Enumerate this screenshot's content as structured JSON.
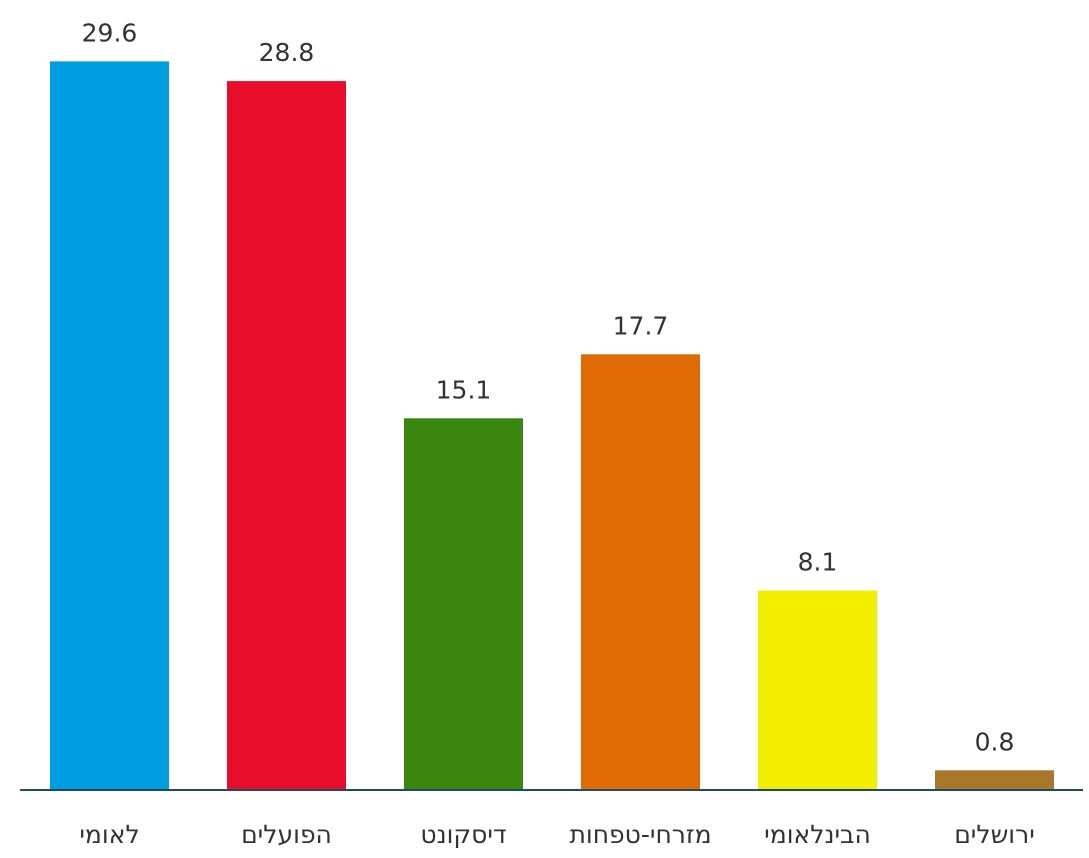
{
  "chart_data": {
    "type": "bar",
    "categories": [
      "לאומי",
      "הפועלים",
      "דיסקונט",
      "מזרחי-טפחות",
      "הבינלאומי",
      "ירושלים"
    ],
    "values": [
      29.6,
      28.8,
      15.1,
      17.7,
      8.1,
      0.8
    ],
    "colors": [
      "#009ee0",
      "#e80e2b",
      "#3a870f",
      "#e06a03",
      "#f3ee00",
      "#a8782a"
    ],
    "axis_color": "#1d4b63",
    "label_color": "#333333",
    "ylim": [
      0,
      31.2
    ],
    "grid": false,
    "legend": "none"
  }
}
